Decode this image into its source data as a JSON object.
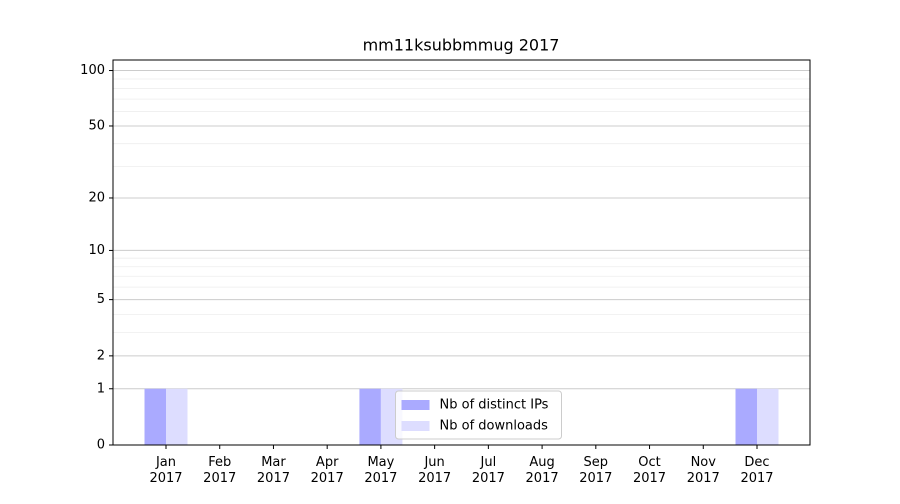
{
  "chart_data": {
    "type": "bar",
    "title": "mm11ksubbmmug 2017",
    "categories": [
      "Jan 2017",
      "Feb 2017",
      "Mar 2017",
      "Apr 2017",
      "May 2017",
      "Jun 2017",
      "Jul 2017",
      "Aug 2017",
      "Sep 2017",
      "Oct 2017",
      "Nov 2017",
      "Dec 2017"
    ],
    "series": [
      {
        "name": "Nb of distinct IPs",
        "color": "#aaaaff",
        "values": [
          1,
          0,
          0,
          0,
          1,
          0,
          0,
          0,
          0,
          0,
          0,
          1
        ]
      },
      {
        "name": "Nb of downloads",
        "color": "#ddddff",
        "values": [
          1,
          0,
          0,
          0,
          1,
          0,
          0,
          0,
          0,
          0,
          0,
          1
        ]
      }
    ],
    "yscale": "log1p",
    "ylim": [
      0,
      114
    ],
    "yticks": [
      0,
      1,
      2,
      5,
      10,
      20,
      50,
      100
    ],
    "minor_yticks": [
      3,
      4,
      6,
      7,
      8,
      9,
      30,
      40,
      60,
      70,
      80,
      90
    ],
    "grid": true,
    "legend": "lower center"
  }
}
